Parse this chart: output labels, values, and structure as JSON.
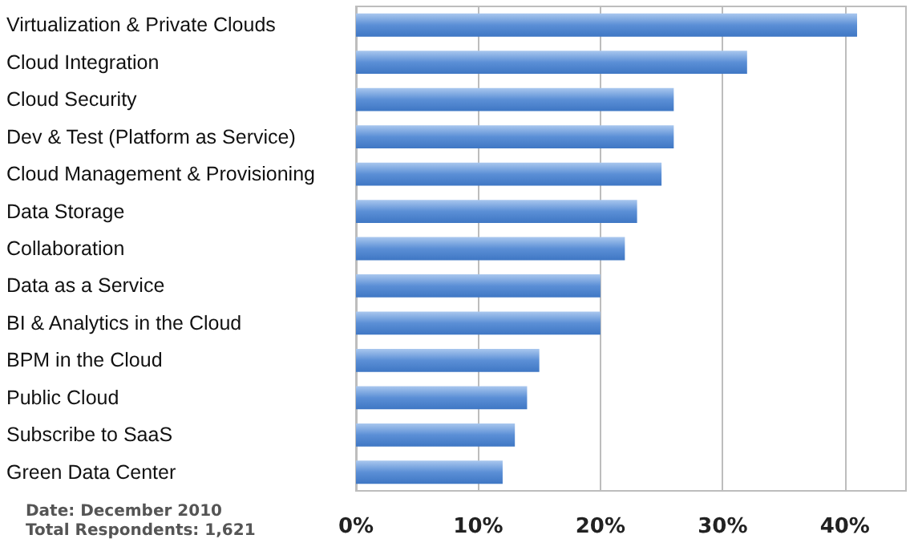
{
  "chart_data": {
    "type": "bar",
    "orientation": "horizontal",
    "categories": [
      "Virtualization & Private Clouds",
      "Cloud Integration",
      "Cloud Security",
      "Dev & Test (Platform as Service)",
      "Cloud Management & Provisioning",
      "Data Storage",
      "Collaboration",
      "Data as a Service",
      "BI & Analytics in the Cloud",
      "BPM in the Cloud",
      "Public Cloud",
      "Subscribe to SaaS",
      "Green Data Center"
    ],
    "values": [
      41,
      32,
      26,
      26,
      25,
      23,
      22,
      20,
      20,
      15,
      14,
      13,
      12
    ],
    "color": "#5b8fd6",
    "xlim": [
      0,
      45
    ],
    "xticks": [
      {
        "value": 0,
        "label": "0%"
      },
      {
        "value": 10,
        "label": "10%"
      },
      {
        "value": 20,
        "label": "20%"
      },
      {
        "value": 30,
        "label": "30%"
      },
      {
        "value": 40,
        "label": "40%"
      }
    ],
    "grid": "x",
    "annotations": [
      "Date: December 2010",
      "Total Respondents: 1,621"
    ]
  }
}
